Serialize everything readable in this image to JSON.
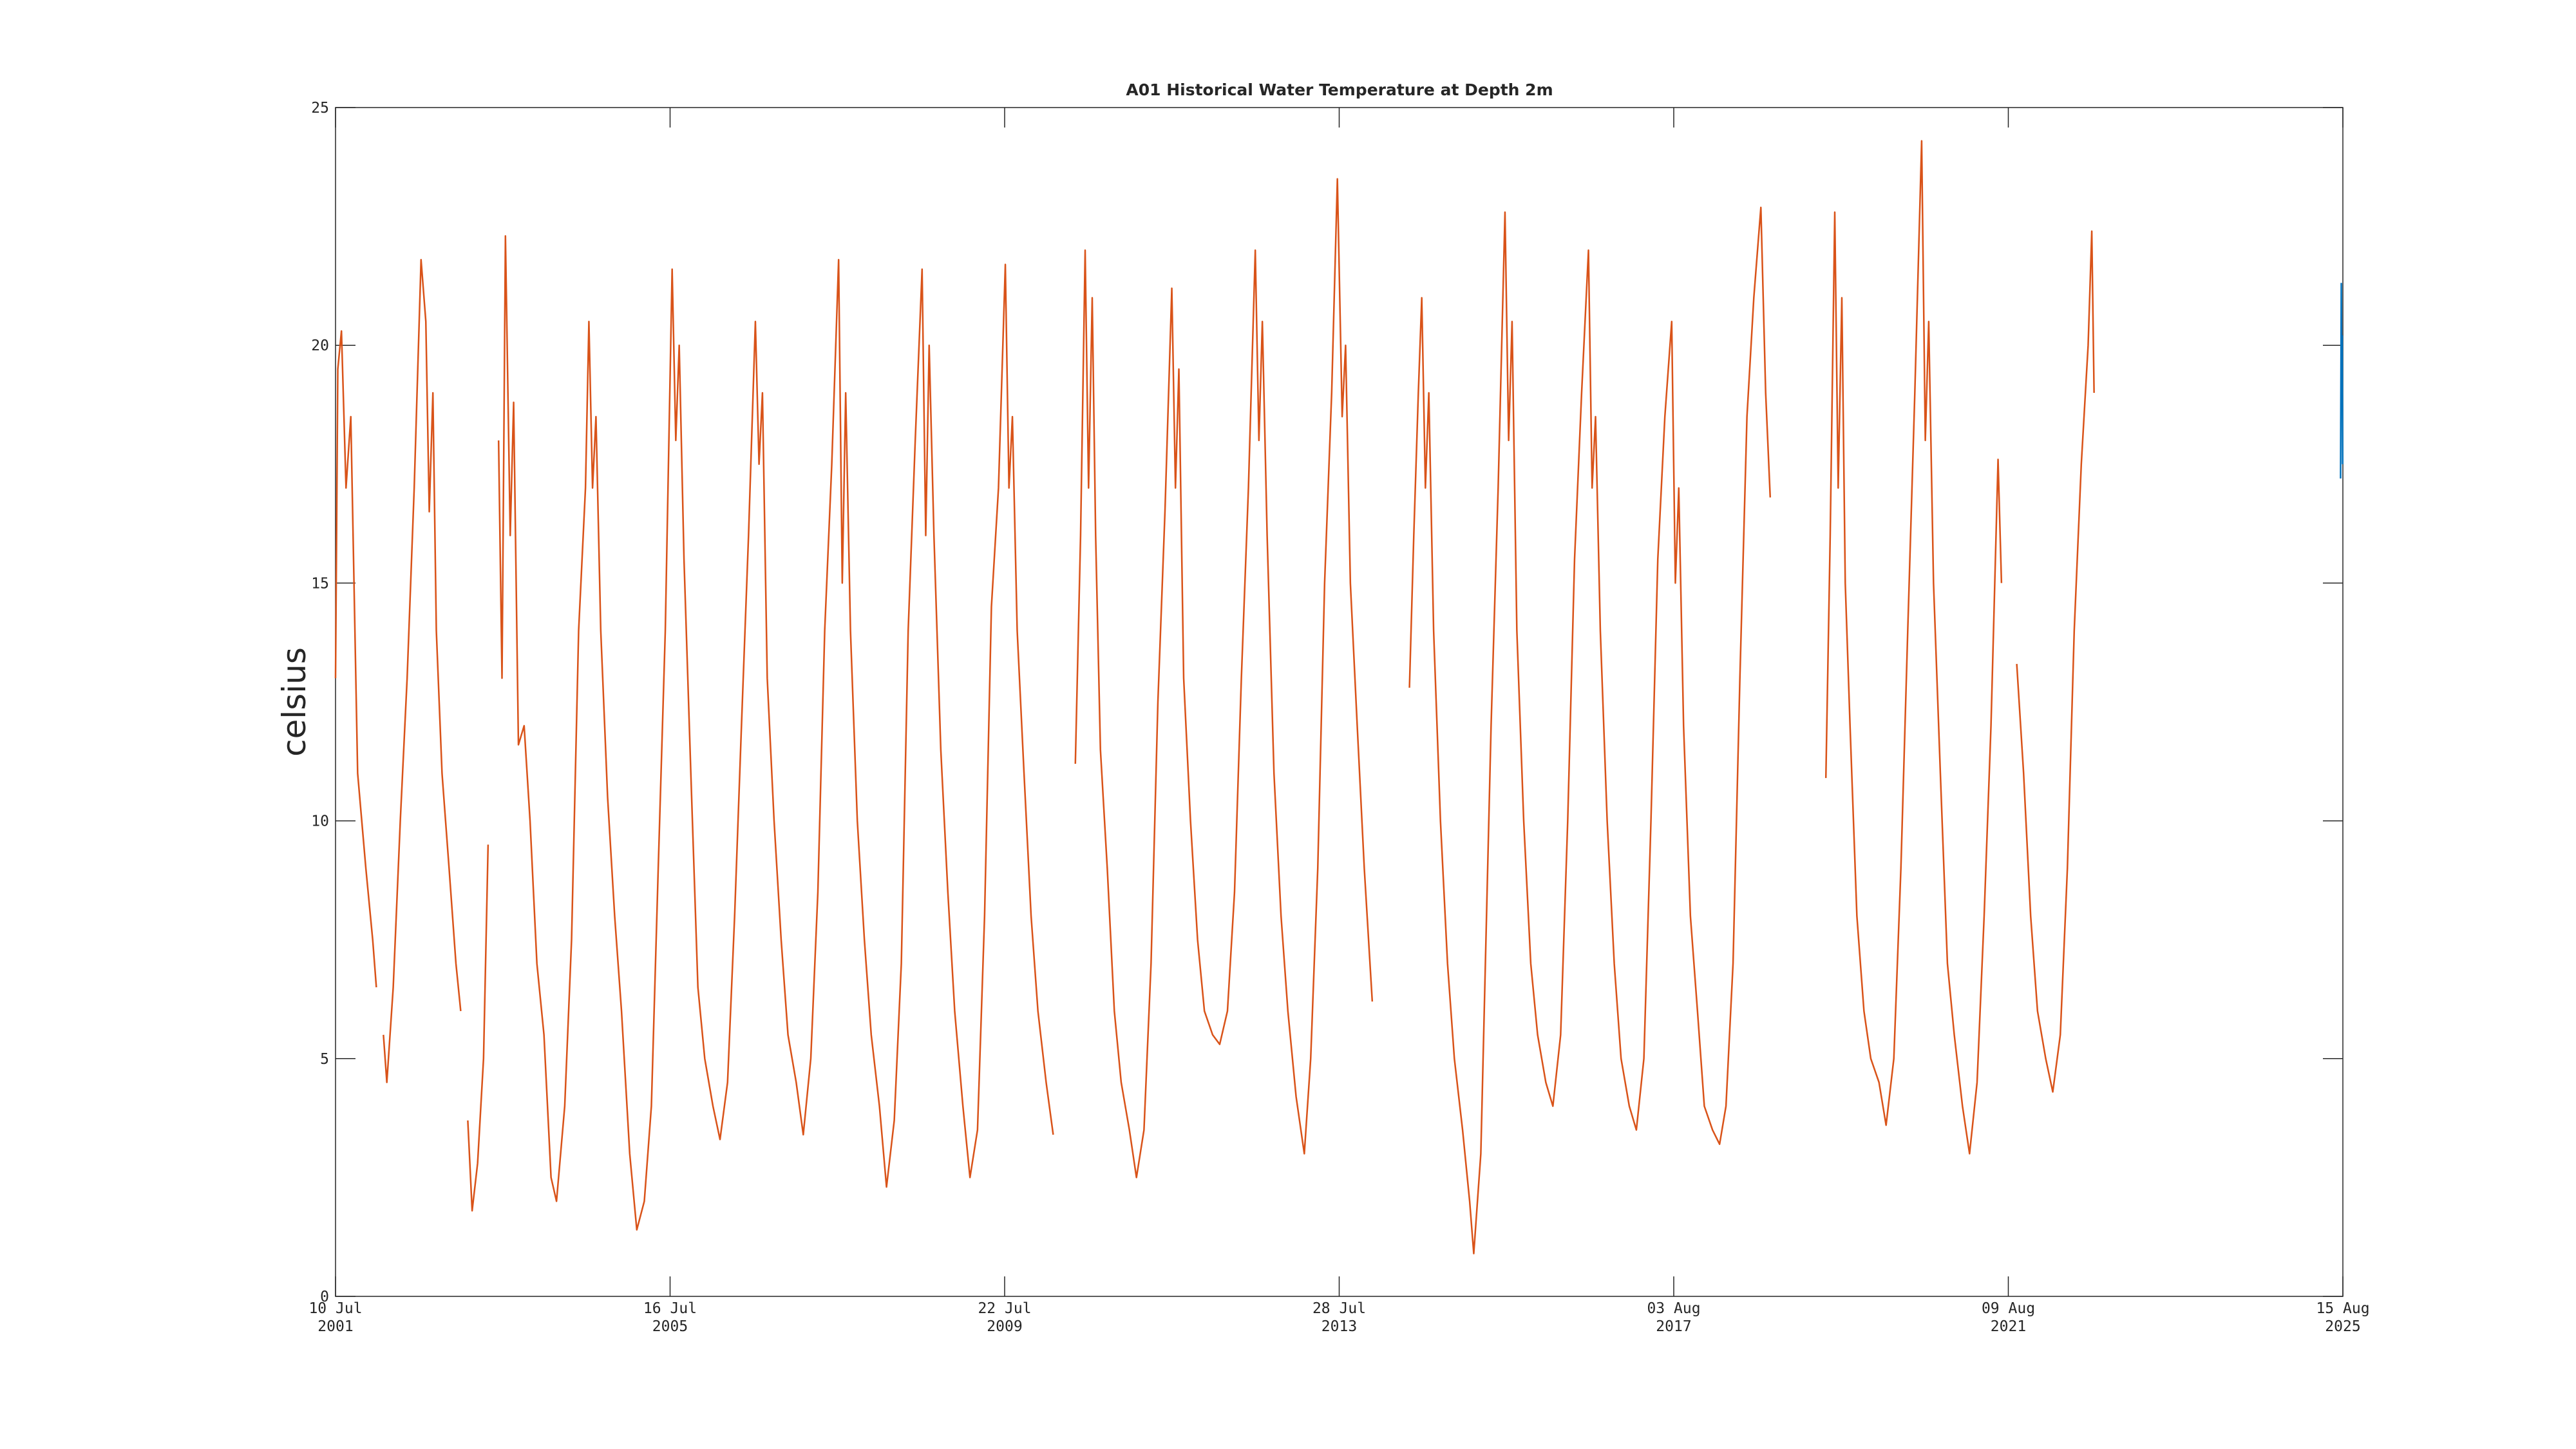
{
  "chart_data": {
    "type": "line",
    "title": "A01 Historical Water Temperature at Depth 2m",
    "y_label": "celsius",
    "xlim": [
      "2001-07-10",
      "2025-08-15"
    ],
    "xticks": [
      {
        "value": "2001-07-10",
        "label": "10 Jul 2001"
      },
      {
        "value": "2005-07-16",
        "label": "16 Jul 2005"
      },
      {
        "value": "2009-07-22",
        "label": "22 Jul 2009"
      },
      {
        "value": "2013-07-28",
        "label": "28 Jul 2013"
      },
      {
        "value": "2017-08-03",
        "label": "03 Aug 2017"
      },
      {
        "value": "2021-08-09",
        "label": "09 Aug 2021"
      },
      {
        "value": "2025-08-15",
        "label": "15 Aug 2025"
      }
    ],
    "ylim": [
      0,
      25
    ],
    "yticks": [
      0,
      5,
      10,
      15,
      20,
      25
    ],
    "grid": false,
    "series": [
      {
        "color": "#d95319",
        "x": [
          "2001-07-10",
          "2001-07-20",
          "2001-08-05",
          "2001-08-25",
          "2001-09-15",
          "2001-10-15",
          "2001-11-20",
          "2001-12-20",
          "2002-01-05",
          "2002-01-20",
          "2002-02-05",
          "2002-02-20",
          "2002-03-20",
          "2002-04-20",
          "2002-05-20",
          "2002-06-20",
          "2002-07-20",
          "2002-08-10",
          "2002-08-25",
          "2002-09-10",
          "2002-09-25",
          "2002-10-20",
          "2002-11-20",
          "2002-12-20",
          "2003-01-10",
          "2003-01-25",
          "2003-02-10",
          "2003-03-01",
          "2003-03-25",
          "2003-04-20",
          "2003-05-10",
          "2003-05-25",
          "2003-06-25",
          "2003-07-10",
          "2003-07-25",
          "2003-08-15",
          "2003-08-30",
          "2003-09-20",
          "2003-10-15",
          "2003-11-10",
          "2003-12-10",
          "2004-01-10",
          "2004-02-10",
          "2004-03-05",
          "2004-04-10",
          "2004-05-10",
          "2004-06-10",
          "2004-07-10",
          "2004-07-25",
          "2004-08-10",
          "2004-08-25",
          "2004-09-15",
          "2004-10-15",
          "2004-11-15",
          "2004-12-15",
          "2005-01-20",
          "2005-02-20",
          "2005-03-25",
          "2005-04-25",
          "2005-05-25",
          "2005-06-25",
          "2005-07-25",
          "2005-08-10",
          "2005-08-25",
          "2005-09-15",
          "2005-10-15",
          "2005-11-15",
          "2005-12-15",
          "2006-01-20",
          "2006-02-20",
          "2006-03-25",
          "2006-04-25",
          "2006-05-25",
          "2006-06-25",
          "2006-07-25",
          "2006-08-10",
          "2006-08-25",
          "2006-09-15",
          "2006-10-15",
          "2006-11-15",
          "2006-12-15",
          "2007-01-20",
          "2007-02-20",
          "2007-03-25",
          "2007-04-25",
          "2007-05-25",
          "2007-06-25",
          "2007-07-25",
          "2007-08-10",
          "2007-08-25",
          "2007-09-15",
          "2007-10-15",
          "2007-11-15",
          "2007-12-15",
          "2008-01-20",
          "2008-02-20",
          "2008-03-25",
          "2008-04-25",
          "2008-05-25",
          "2008-06-25",
          "2008-07-25",
          "2008-08-10",
          "2008-08-25",
          "2008-09-15",
          "2008-10-15",
          "2008-11-15",
          "2008-12-15",
          "2009-01-20",
          "2009-02-20",
          "2009-03-25",
          "2009-04-25",
          "2009-05-25",
          "2009-06-25",
          "2009-07-25",
          "2009-08-10",
          "2009-08-25",
          "2009-09-15",
          "2009-10-15",
          "2009-11-15",
          "2009-12-15",
          "2010-01-20",
          "2010-02-20",
          "2010-03-15",
          "2010-05-28",
          "2010-06-20",
          "2010-07-10",
          "2010-07-25",
          "2010-08-10",
          "2010-08-25",
          "2010-09-15",
          "2010-10-15",
          "2010-11-15",
          "2010-12-15",
          "2011-01-20",
          "2011-02-20",
          "2011-03-25",
          "2011-04-25",
          "2011-05-25",
          "2011-06-25",
          "2011-07-25",
          "2011-08-10",
          "2011-08-25",
          "2011-09-15",
          "2011-10-15",
          "2011-11-15",
          "2011-12-15",
          "2012-01-20",
          "2012-02-20",
          "2012-03-25",
          "2012-04-25",
          "2012-05-25",
          "2012-06-25",
          "2012-07-25",
          "2012-08-10",
          "2012-08-25",
          "2012-09-15",
          "2012-10-15",
          "2012-11-15",
          "2012-12-15",
          "2013-01-20",
          "2013-02-25",
          "2013-03-25",
          "2013-04-25",
          "2013-05-25",
          "2013-06-25",
          "2013-07-20",
          "2013-08-10",
          "2013-08-25",
          "2013-09-15",
          "2013-10-15",
          "2013-11-15",
          "2013-12-20",
          "2014-01-20",
          "2014-06-01",
          "2014-06-20",
          "2014-07-10",
          "2014-07-25",
          "2014-08-10",
          "2014-08-25",
          "2014-09-15",
          "2014-10-15",
          "2014-11-15",
          "2014-12-15",
          "2015-01-20",
          "2015-02-20",
          "2015-03-10",
          "2015-04-10",
          "2015-04-25",
          "2015-05-25",
          "2015-06-25",
          "2015-07-25",
          "2015-08-10",
          "2015-08-25",
          "2015-09-15",
          "2015-10-15",
          "2015-11-15",
          "2015-12-15",
          "2016-01-20",
          "2016-02-20",
          "2016-03-25",
          "2016-04-25",
          "2016-05-25",
          "2016-06-25",
          "2016-07-25",
          "2016-08-10",
          "2016-08-25",
          "2016-09-15",
          "2016-10-15",
          "2016-11-15",
          "2016-12-15",
          "2017-01-20",
          "2017-02-20",
          "2017-03-25",
          "2017-04-25",
          "2017-05-25",
          "2017-06-25",
          "2017-07-25",
          "2017-08-10",
          "2017-08-25",
          "2017-09-15",
          "2017-10-15",
          "2017-11-15",
          "2017-12-15",
          "2018-01-20",
          "2018-02-20",
          "2018-03-20",
          "2018-04-20",
          "2018-05-20",
          "2018-06-20",
          "2018-07-20",
          "2018-08-20",
          "2018-09-10",
          "2018-09-30",
          "2018-10-15",
          "2019-06-01",
          "2019-06-20",
          "2019-07-10",
          "2019-07-25",
          "2019-08-10",
          "2019-08-25",
          "2019-09-15",
          "2019-10-15",
          "2019-11-15",
          "2019-12-15",
          "2020-01-20",
          "2020-02-20",
          "2020-03-25",
          "2020-04-25",
          "2020-05-25",
          "2020-06-25",
          "2020-07-25",
          "2020-08-10",
          "2020-08-25",
          "2020-09-15",
          "2020-10-15",
          "2020-11-15",
          "2020-12-15",
          "2021-01-20",
          "2021-02-20",
          "2021-03-25",
          "2021-04-25",
          "2021-05-25",
          "2021-06-25",
          "2021-07-10",
          "2021-07-25",
          "2021-09-15",
          "2021-10-15",
          "2021-11-15",
          "2021-12-15",
          "2022-01-20",
          "2022-02-20",
          "2022-03-25",
          "2022-04-25",
          "2022-05-25",
          "2022-06-25",
          "2022-07-25",
          "2022-08-10",
          "2022-08-20"
        ],
        "values": [
          13,
          19.5,
          20.3,
          17,
          18.5,
          11,
          9,
          7.5,
          6.5,
          null,
          5.5,
          4.5,
          6.5,
          10,
          13,
          17,
          21.8,
          20.5,
          16.5,
          19,
          14,
          11,
          9,
          7,
          6,
          null,
          3.7,
          1.8,
          2.8,
          5,
          9.5,
          null,
          18,
          13,
          22.3,
          16,
          18.8,
          11.6,
          12,
          10,
          7,
          5.5,
          2.5,
          2,
          4,
          7.5,
          14,
          17,
          20.5,
          17,
          18.5,
          14,
          10.5,
          8,
          6,
          3,
          1.4,
          2,
          4,
          9,
          14,
          21.6,
          18,
          20,
          15.5,
          11,
          6.5,
          5,
          4,
          3.3,
          4.5,
          8,
          12,
          16,
          20.5,
          17.5,
          19,
          13,
          10,
          7.5,
          5.5,
          4.5,
          3.4,
          5,
          8.5,
          14,
          17.5,
          21.8,
          15,
          19,
          14,
          10,
          7.5,
          5.5,
          4,
          2.3,
          3.7,
          7,
          14,
          18,
          21.6,
          16,
          20,
          16,
          11.5,
          8.5,
          6,
          4,
          2.5,
          3.5,
          8,
          14.5,
          17,
          21.7,
          17,
          18.5,
          14,
          11,
          8,
          6,
          4.5,
          3.4,
          null,
          11.2,
          16,
          22,
          17,
          21,
          16,
          11.5,
          9,
          6,
          4.5,
          3.5,
          2.5,
          3.5,
          7,
          12.5,
          16.5,
          21.2,
          17,
          19.5,
          13,
          10,
          7.5,
          6,
          5.5,
          5.3,
          6,
          8.5,
          13,
          17,
          22,
          18,
          20.5,
          16,
          11,
          8,
          6,
          4.2,
          3,
          5,
          9,
          15,
          19,
          23.5,
          18.5,
          20,
          15,
          12,
          9,
          6.2,
          null,
          12.8,
          16,
          19,
          21,
          17,
          19,
          14,
          10,
          7,
          5,
          3.5,
          2,
          0.9,
          3,
          6,
          12,
          17,
          22.8,
          18,
          20.5,
          14,
          10,
          7,
          5.5,
          4.5,
          4,
          5.5,
          10,
          15.5,
          19,
          22,
          17,
          18.5,
          14,
          10,
          7,
          5,
          4,
          3.5,
          5,
          10,
          15.5,
          18.5,
          20.5,
          15,
          17,
          12,
          8,
          6,
          4,
          3.5,
          3.2,
          4,
          7,
          13,
          18.5,
          21,
          22.9,
          19,
          16.8,
          null,
          10.9,
          16,
          22.8,
          17,
          21,
          15,
          12,
          8,
          6,
          5,
          4.5,
          3.6,
          5,
          9,
          14,
          19,
          24.3,
          18,
          20.5,
          15,
          11,
          7,
          5.5,
          4,
          3,
          4.5,
          8,
          12,
          17.6,
          15,
          null,
          13.3,
          11,
          8,
          6,
          5,
          4.3,
          5.5,
          9,
          14,
          17.5,
          20,
          22.4,
          19
        ]
      },
      {
        "color": "#0072bd",
        "x": [
          "2025-08-05",
          "2025-08-08",
          "2025-08-10",
          "2025-08-12",
          "2025-08-14"
        ],
        "values": [
          17.2,
          21.3,
          19,
          20.2,
          17.5
        ]
      }
    ]
  }
}
